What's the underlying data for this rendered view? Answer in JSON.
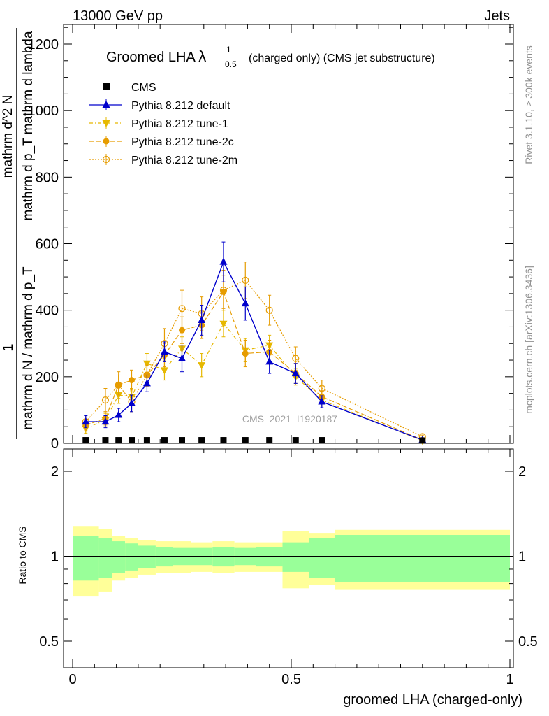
{
  "chart_data": {
    "type": "line",
    "header_left": "13000 GeV pp",
    "header_right": "Jets",
    "title_main": "Groomed LHA ",
    "title_lambda": "λ",
    "title_sup": "1",
    "title_sub": "0.5",
    "title_tail": "(charged only) (CMS jet substructure)",
    "watermark": "CMS_2021_I1920187",
    "side_top": "Rivet 3.1.10, ≥ 300k events",
    "side_bottom": "mcplots.cern.ch [arXiv:1306.3436]",
    "ylabel_num": "1",
    "ylabel_den": "mathrm d N / mathrm d p_T",
    "ylabel_frac_num": "mathrm d^2 N",
    "ylabel_frac_den": "mathrm d p_T mathrm d lambda",
    "ratio_ylabel": "Ratio to CMS",
    "xlabel": "groomed LHA (charged-only)",
    "xlim": [
      0,
      1
    ],
    "ylim": [
      0,
      1260
    ],
    "ratio_ylim": [
      0.35,
      2.2
    ],
    "xticks": [
      {
        "v": 0,
        "label": "0"
      },
      {
        "v": 0.5,
        "label": "0.5"
      },
      {
        "v": 1,
        "label": "1"
      }
    ],
    "yticks": [
      {
        "v": 0,
        "label": "0"
      },
      {
        "v": 200,
        "label": "200"
      },
      {
        "v": 400,
        "label": "400"
      },
      {
        "v": 600,
        "label": "600"
      },
      {
        "v": 800,
        "label": "800"
      },
      {
        "v": 1000,
        "label": "1000"
      },
      {
        "v": 1200,
        "label": "1200"
      }
    ],
    "ratio_yticks": [
      {
        "v": 0.5,
        "label": "0.5"
      },
      {
        "v": 1,
        "label": "1"
      },
      {
        "v": 2,
        "label": "2"
      }
    ],
    "bin_edges": [
      0,
      0.06,
      0.09,
      0.12,
      0.15,
      0.19,
      0.23,
      0.27,
      0.32,
      0.37,
      0.42,
      0.48,
      0.54,
      0.6,
      1.0
    ],
    "x": [
      0.03,
      0.075,
      0.105,
      0.135,
      0.17,
      0.21,
      0.25,
      0.295,
      0.345,
      0.395,
      0.45,
      0.51,
      0.57,
      0.8
    ],
    "band_stat": [
      0.18,
      0.16,
      0.13,
      0.11,
      0.09,
      0.08,
      0.07,
      0.07,
      0.08,
      0.07,
      0.08,
      0.12,
      0.16,
      0.19
    ],
    "band_total": [
      0.28,
      0.25,
      0.18,
      0.16,
      0.14,
      0.13,
      0.13,
      0.12,
      0.13,
      0.12,
      0.12,
      0.23,
      0.21,
      0.24
    ],
    "cms_values": [
      2,
      2,
      2,
      2,
      2,
      2,
      2,
      2,
      2,
      2,
      2,
      2,
      2,
      1
    ],
    "series": [
      {
        "name": "CMS",
        "kind": "data",
        "color": "#000000",
        "values": [
          2,
          2,
          2,
          2,
          2,
          2,
          2,
          2,
          2,
          2,
          2,
          2,
          2,
          1
        ]
      },
      {
        "name": "Pythia 8.212 default",
        "kind": "default",
        "color": "#0000cc",
        "marker": "triangle-up",
        "dash": "",
        "values": [
          65,
          65,
          85,
          120,
          180,
          275,
          255,
          370,
          545,
          420,
          245,
          210,
          125,
          10
        ],
        "err": [
          18,
          18,
          20,
          25,
          25,
          30,
          40,
          45,
          60,
          50,
          35,
          30,
          18,
          4
        ]
      },
      {
        "name": "Pythia 8.212 tune-1",
        "kind": "tune1",
        "color": "#e6b800",
        "marker": "triangle-down",
        "dash": "5,3,1,3",
        "values": [
          45,
          70,
          145,
          140,
          240,
          220,
          285,
          235,
          360,
          280,
          295,
          200,
          130,
          8
        ],
        "err": [
          15,
          20,
          25,
          25,
          30,
          30,
          35,
          35,
          40,
          35,
          30,
          25,
          18,
          4
        ]
      },
      {
        "name": "Pythia 8.212 tune-2c",
        "kind": "tune2c",
        "color": "#e69c00",
        "marker": "circle",
        "dash": "7,3",
        "values": [
          55,
          75,
          175,
          190,
          205,
          265,
          340,
          355,
          455,
          270,
          275,
          210,
          140,
          10
        ],
        "err": [
          15,
          20,
          30,
          30,
          30,
          35,
          40,
          40,
          50,
          40,
          35,
          30,
          18,
          4
        ]
      },
      {
        "name": "Pythia 8.212 tune-2m",
        "kind": "tune2m",
        "color": "#e69c00",
        "marker": "circle-open",
        "dash": "2,2",
        "values": [
          65,
          130,
          175,
          125,
          205,
          300,
          405,
          390,
          460,
          490,
          400,
          255,
          165,
          20
        ],
        "err": [
          20,
          35,
          40,
          30,
          35,
          45,
          55,
          50,
          60,
          55,
          45,
          35,
          25,
          5
        ]
      }
    ]
  }
}
